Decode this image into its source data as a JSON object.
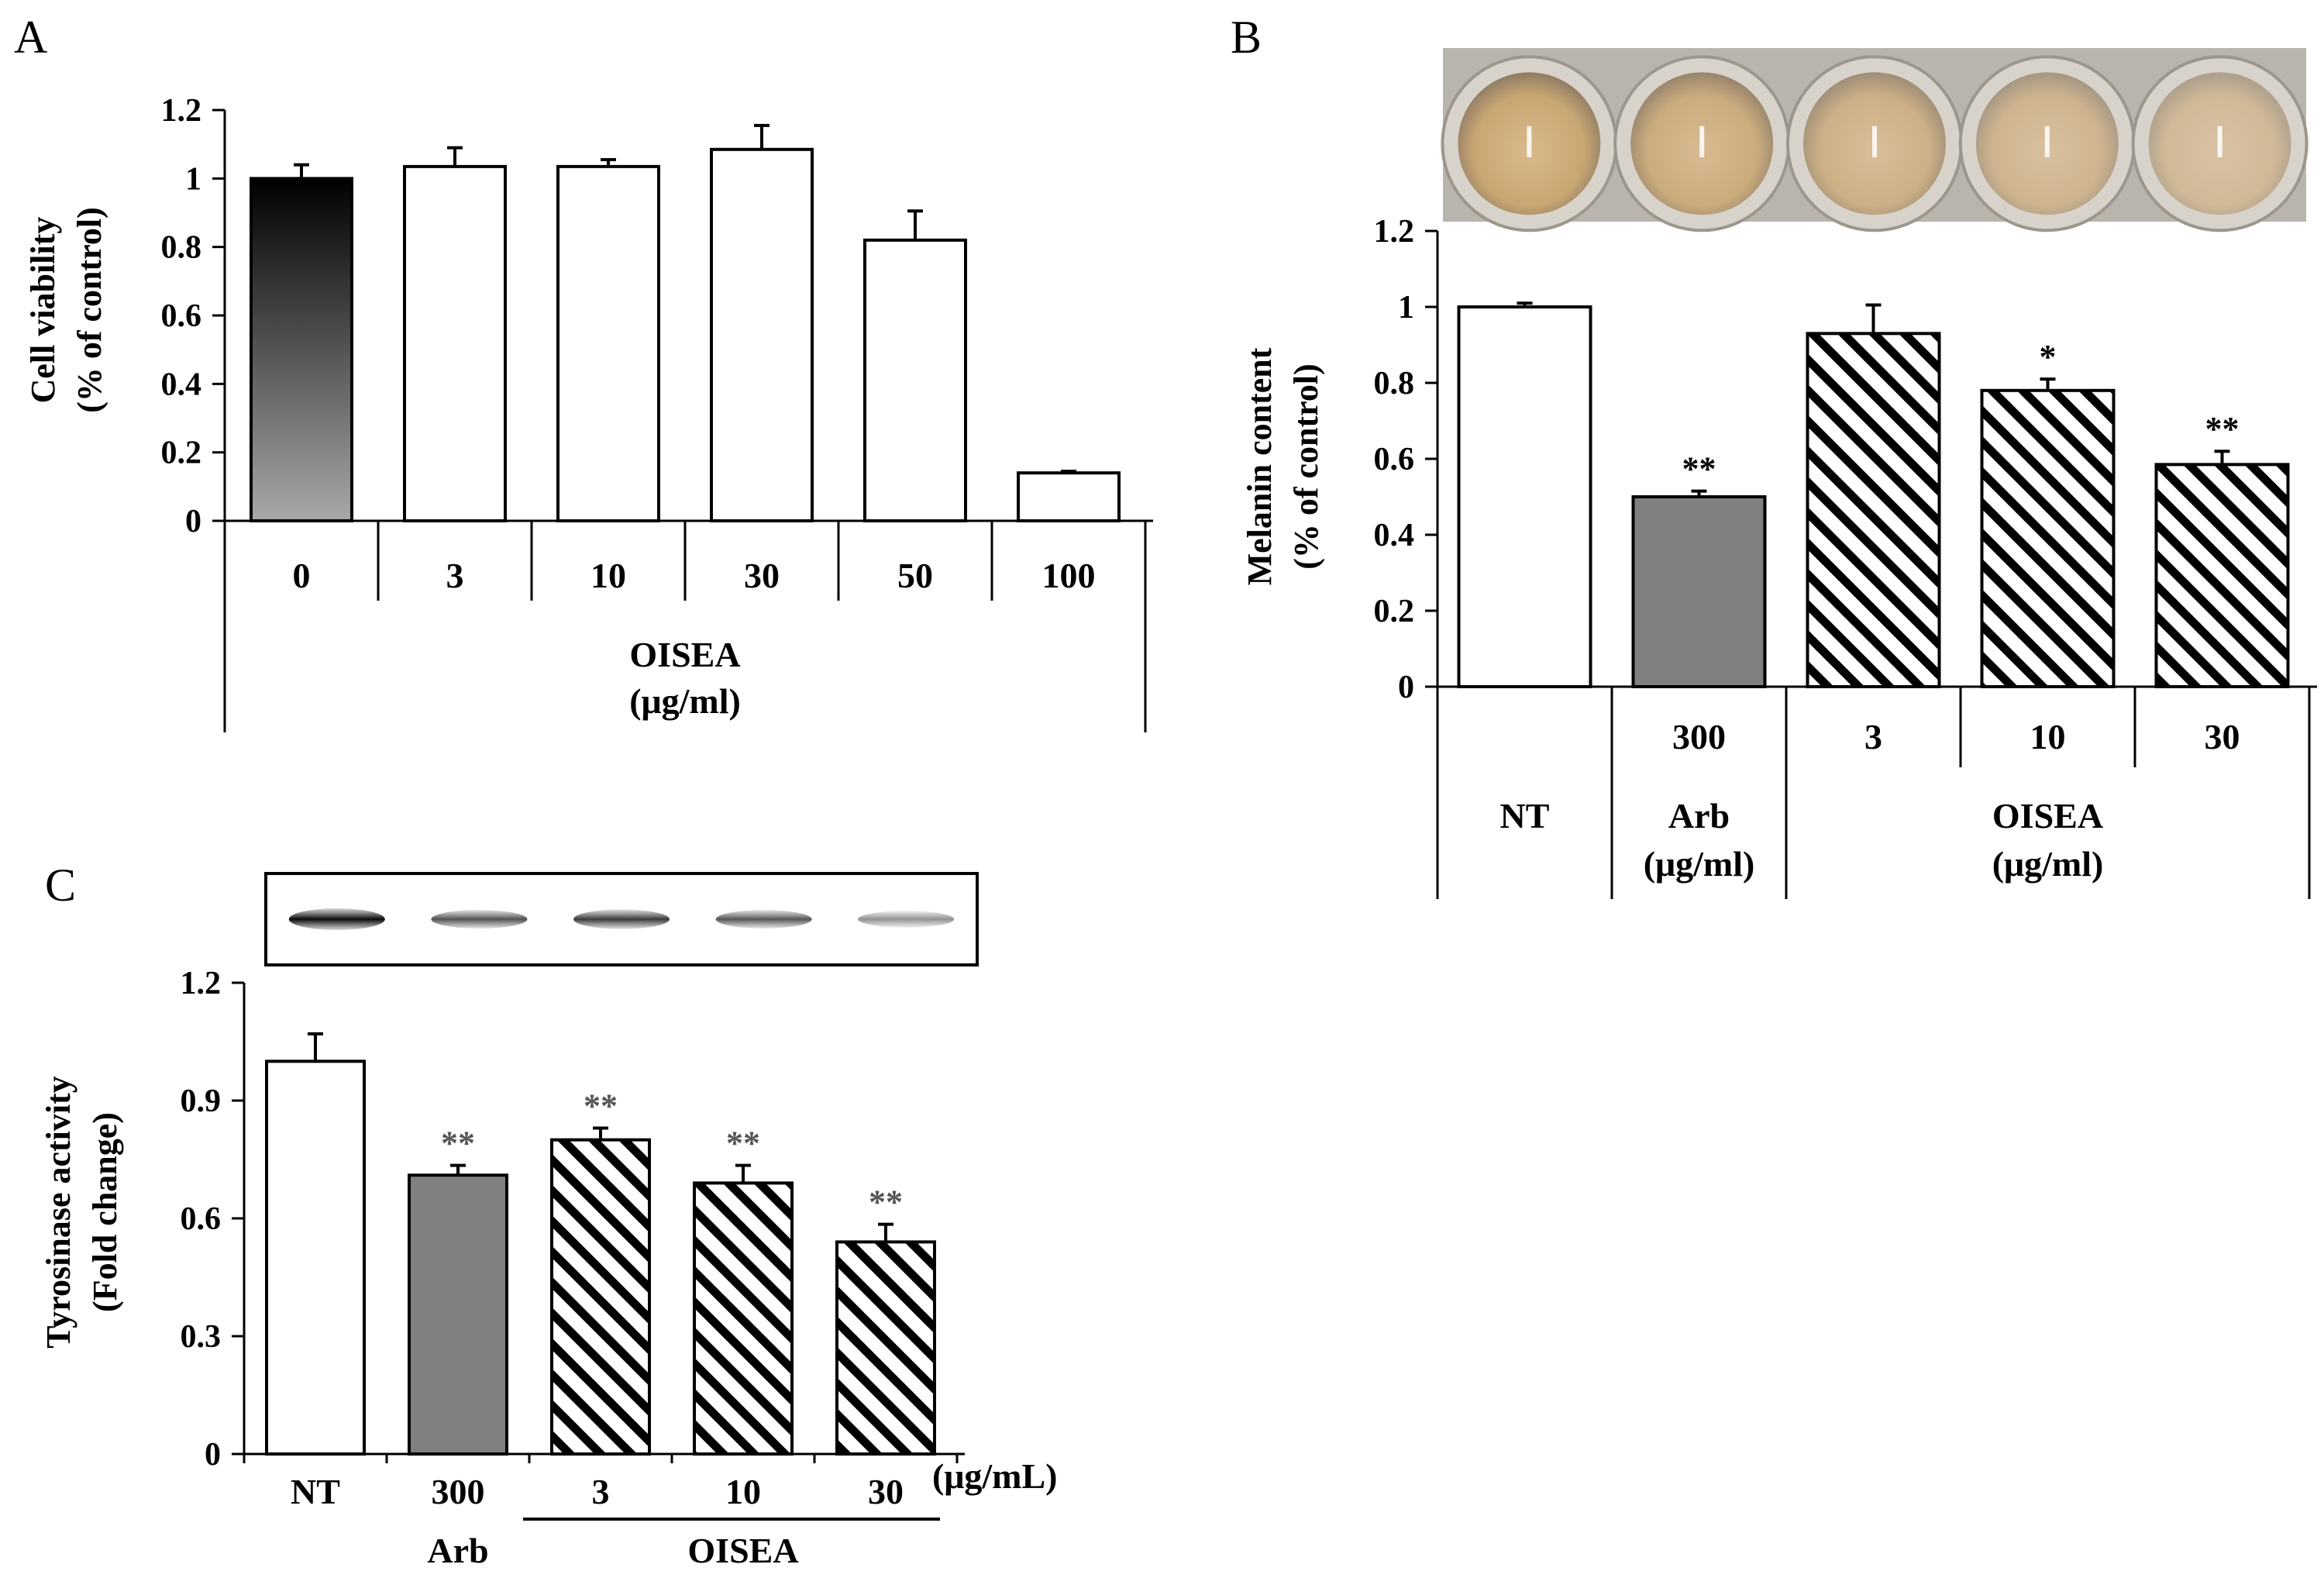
{
  "panels": [
    {
      "letter": "A",
      "chart_data": {
        "type": "bar",
        "ylabel": [
          "Cell viability",
          "(% of control)"
        ],
        "ylim": [
          0,
          1.2
        ],
        "yticks": [
          "0",
          "0.2",
          "0.4",
          "0.6",
          "0.8",
          "1",
          "1.2"
        ],
        "categories": [
          "0",
          "3",
          "10",
          "30",
          "50",
          "100"
        ],
        "values": [
          1.0,
          1.035,
          1.035,
          1.085,
          0.82,
          0.14
        ],
        "errors": [
          0.04,
          0.055,
          0.02,
          0.07,
          0.085,
          0.005
        ],
        "fills": [
          "gradient",
          "white",
          "white",
          "white",
          "white",
          "white"
        ],
        "significance": [
          "",
          "",
          "",
          "",
          "",
          ""
        ],
        "group_labels": [
          {
            "from": 0,
            "to": 5,
            "lines": [
              "OISEA",
              "(μg/ml)"
            ]
          }
        ]
      }
    },
    {
      "letter": "B",
      "image": {
        "name": "melanin-wells-photo",
        "well_count": 5
      },
      "chart_data": {
        "type": "bar",
        "ylabel": [
          "Melanin content",
          "(% of control)"
        ],
        "ylim": [
          0,
          1.2
        ],
        "yticks": [
          "0",
          "0.2",
          "0.4",
          "0.6",
          "0.8",
          "1",
          "1.2"
        ],
        "categories": [
          "",
          "300",
          "3",
          "10",
          "30"
        ],
        "values": [
          1.0,
          0.5,
          0.93,
          0.78,
          0.585
        ],
        "errors": [
          0.01,
          0.015,
          0.075,
          0.03,
          0.035
        ],
        "fills": [
          "white",
          "gray",
          "hatch",
          "hatch",
          "hatch"
        ],
        "significance": [
          "",
          "**",
          "",
          "*",
          "**"
        ],
        "group_labels": [
          {
            "from": 0,
            "to": 0,
            "lines": [
              "NT"
            ]
          },
          {
            "from": 1,
            "to": 1,
            "lines": [
              "Arb",
              "(μg/ml)"
            ]
          },
          {
            "from": 2,
            "to": 4,
            "lines": [
              "OISEA",
              "(μg/ml)"
            ]
          }
        ]
      }
    },
    {
      "letter": "C",
      "image": {
        "name": "western-blot",
        "band_count": 5
      },
      "chart_data": {
        "type": "bar",
        "ylabel": [
          "Tyrosinase activity",
          "(Fold change)"
        ],
        "ylim": [
          0,
          1.2
        ],
        "yticks": [
          "0",
          "0.3",
          "0.6",
          "0.9",
          "1.2"
        ],
        "categories": [
          "NT",
          "300",
          "3",
          "10",
          "30"
        ],
        "values": [
          1.0,
          0.71,
          0.8,
          0.69,
          0.54
        ],
        "errors": [
          0.07,
          0.025,
          0.03,
          0.045,
          0.045
        ],
        "fills": [
          "white",
          "gray",
          "hatch",
          "hatch",
          "hatch"
        ],
        "significance": [
          "",
          "**",
          "**",
          "**",
          "**"
        ],
        "unit_label": "(μg/mL)",
        "group_labels": [
          {
            "from": 1,
            "to": 1,
            "lines": [
              "Arb"
            ]
          },
          {
            "from": 2,
            "to": 4,
            "lines": [
              "OISEA"
            ]
          }
        ]
      }
    }
  ],
  "colors": {
    "gray_bar": "#808080",
    "gradient_top": "#000000",
    "gradient_bottom": "#a8a8a8",
    "well_plate": "#b9b4ac"
  }
}
